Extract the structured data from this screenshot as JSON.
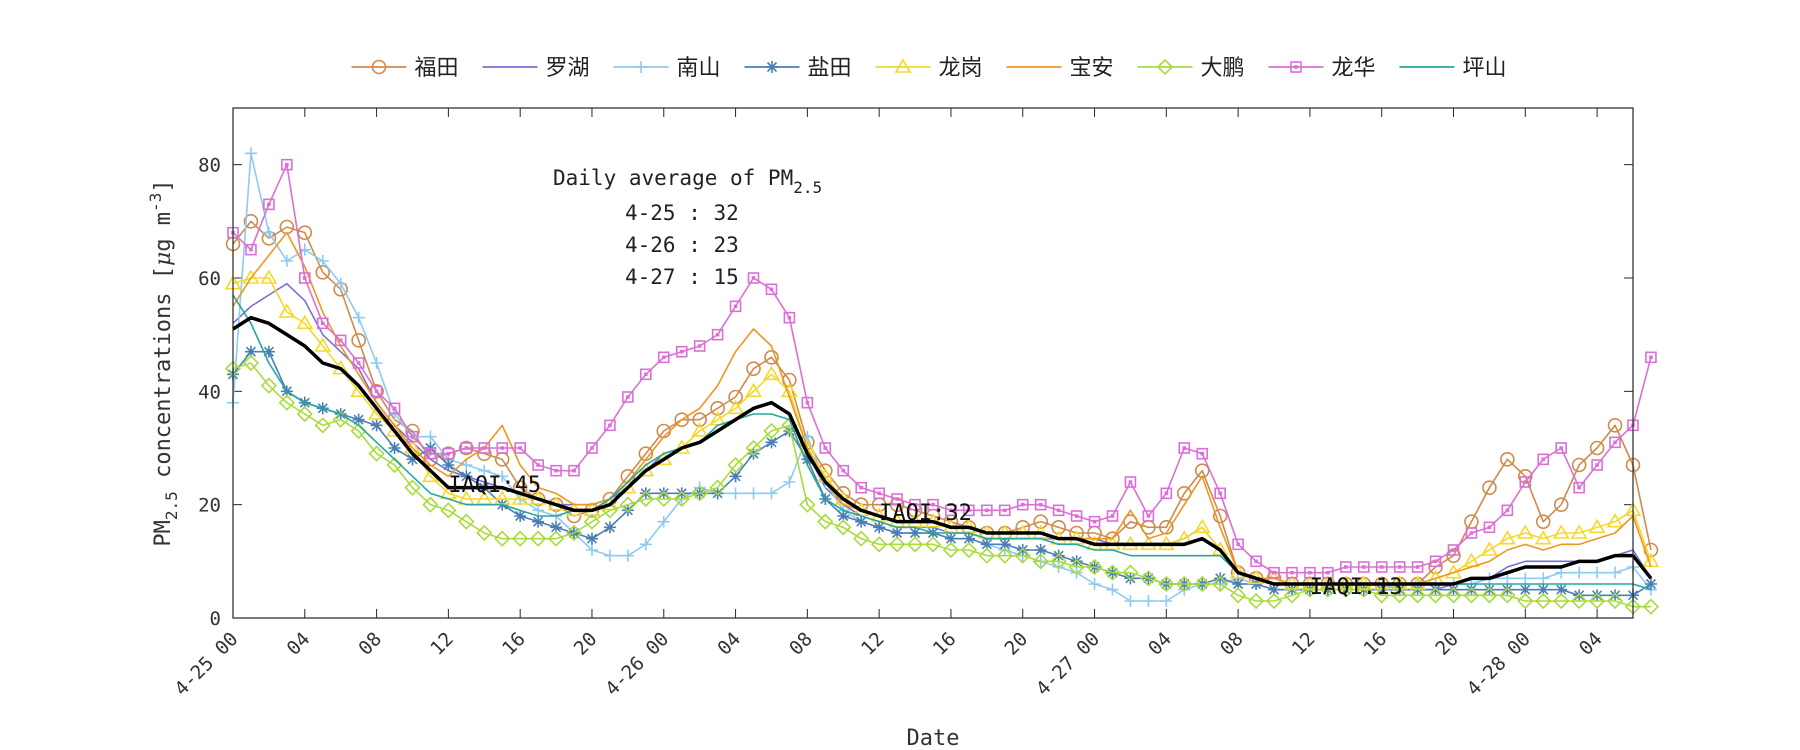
{
  "chart_data": {
    "type": "line",
    "xlabel": "Date",
    "ylabel_main": "PM",
    "ylabel_sub": "2.5",
    "ylabel_rest": " concentrations [",
    "ylabel_unit_mu": "μ",
    "ylabel_unit_rest": "g m",
    "ylabel_unit_sup": "-3",
    "ylabel_close": "]",
    "ylim": [
      0,
      90
    ],
    "yticks": [
      0,
      20,
      40,
      60,
      80
    ],
    "xlim": [
      0,
      78
    ],
    "xticks": [
      {
        "x": 0,
        "label": "4-25 00"
      },
      {
        "x": 4,
        "label": "04"
      },
      {
        "x": 8,
        "label": "08"
      },
      {
        "x": 12,
        "label": "12"
      },
      {
        "x": 16,
        "label": "16"
      },
      {
        "x": 20,
        "label": "20"
      },
      {
        "x": 24,
        "label": "4-26 00"
      },
      {
        "x": 28,
        "label": "04"
      },
      {
        "x": 32,
        "label": "08"
      },
      {
        "x": 36,
        "label": "12"
      },
      {
        "x": 40,
        "label": "16"
      },
      {
        "x": 44,
        "label": "20"
      },
      {
        "x": 48,
        "label": "4-27 00"
      },
      {
        "x": 52,
        "label": "04"
      },
      {
        "x": 56,
        "label": "08"
      },
      {
        "x": 60,
        "label": "12"
      },
      {
        "x": 64,
        "label": "16"
      },
      {
        "x": 68,
        "label": "20"
      },
      {
        "x": 72,
        "label": "4-28 00"
      },
      {
        "x": 76,
        "label": "04"
      }
    ],
    "annotation": {
      "title_main": "Daily average of PM",
      "title_sub": "2.5",
      "lines": [
        "4-25 : 32",
        "4-26 : 23",
        "4-27 : 15"
      ]
    },
    "iaqi_labels": [
      {
        "text": "IAQI:45",
        "x": 12,
        "y": 23.5
      },
      {
        "text": "IAQI:32",
        "x": 36,
        "y": 18.5
      },
      {
        "text": "IAQI:13",
        "x": 60,
        "y": 5.5
      }
    ],
    "legend_placement": "top",
    "series": [
      {
        "name": "福田",
        "color": "#D08A4A",
        "marker": "circle",
        "values": [
          66,
          70,
          67,
          69,
          68,
          61,
          58,
          49,
          40,
          35,
          33,
          28,
          29,
          30,
          29,
          28,
          23,
          21,
          20,
          18,
          19,
          21,
          25,
          29,
          33,
          35,
          35,
          37,
          39,
          44,
          46,
          42,
          31,
          26,
          22,
          20,
          20,
          20,
          19,
          18,
          17,
          16,
          15,
          15,
          16,
          17,
          16,
          15,
          15,
          14,
          17,
          16,
          16,
          22,
          26,
          18,
          8,
          7,
          7,
          6,
          6,
          6,
          6,
          6,
          6,
          6,
          6,
          9,
          11,
          17,
          23,
          28,
          25,
          17,
          20,
          27,
          30,
          34,
          27,
          12
        ]
      },
      {
        "name": "罗湖",
        "color": "#7A6FD6",
        "marker": "none",
        "values": [
          52,
          55,
          57,
          59,
          56,
          50,
          47,
          44,
          38,
          34,
          31,
          28,
          26,
          25,
          24,
          23,
          22,
          21,
          20,
          20,
          20,
          21,
          23,
          26,
          29,
          30,
          31,
          33,
          35,
          37,
          38,
          36,
          29,
          23,
          20,
          18,
          17,
          16,
          16,
          16,
          15,
          15,
          14,
          14,
          14,
          14,
          14,
          14,
          14,
          13,
          13,
          13,
          13,
          14,
          16,
          12,
          8,
          7,
          6,
          6,
          6,
          6,
          6,
          6,
          6,
          5,
          5,
          5,
          6,
          6,
          7,
          9,
          10,
          10,
          10,
          10,
          10,
          11,
          12,
          7
        ]
      },
      {
        "name": "南山",
        "color": "#8DCBF0",
        "marker": "plus",
        "values": [
          38,
          82,
          68,
          63,
          65,
          63,
          59,
          53,
          45,
          36,
          32,
          32,
          28,
          27,
          26,
          25,
          21,
          19,
          18,
          15,
          12,
          11,
          11,
          13,
          17,
          21,
          23,
          22,
          22,
          22,
          22,
          24,
          32,
          24,
          19,
          17,
          16,
          15,
          15,
          15,
          14,
          14,
          13,
          12,
          11,
          10,
          9,
          8,
          6,
          5,
          3,
          3,
          3,
          5,
          6,
          6,
          7,
          6,
          5,
          5,
          5,
          5,
          5,
          5,
          5,
          6,
          6,
          6,
          6,
          6,
          7,
          7,
          7,
          7,
          8,
          8,
          8,
          8,
          9,
          5
        ]
      },
      {
        "name": "盐田",
        "color": "#4A7FB5",
        "marker": "asterisk",
        "values": [
          43,
          47,
          47,
          40,
          38,
          37,
          36,
          35,
          34,
          30,
          28,
          30,
          27,
          25,
          23,
          20,
          18,
          17,
          16,
          15,
          14,
          16,
          19,
          22,
          22,
          22,
          22,
          22,
          25,
          29,
          31,
          33,
          28,
          21,
          18,
          17,
          16,
          15,
          15,
          15,
          14,
          14,
          13,
          13,
          12,
          12,
          11,
          10,
          9,
          8,
          7,
          7,
          6,
          6,
          6,
          7,
          6,
          6,
          5,
          5,
          5,
          5,
          5,
          5,
          5,
          5,
          5,
          5,
          5,
          5,
          5,
          5,
          5,
          5,
          5,
          4,
          4,
          4,
          4,
          6
        ]
      },
      {
        "name": "龙岗",
        "color": "#F5D82A",
        "marker": "triangle",
        "values": [
          59,
          60,
          60,
          54,
          52,
          48,
          44,
          40,
          36,
          33,
          30,
          25,
          22,
          21,
          21,
          21,
          21,
          21,
          20,
          19,
          19,
          20,
          23,
          26,
          28,
          30,
          33,
          35,
          37,
          40,
          43,
          40,
          30,
          25,
          21,
          19,
          18,
          17,
          17,
          17,
          16,
          16,
          15,
          15,
          15,
          15,
          14,
          14,
          13,
          13,
          13,
          13,
          13,
          14,
          16,
          12,
          8,
          7,
          7,
          6,
          6,
          6,
          6,
          6,
          6,
          6,
          6,
          7,
          8,
          10,
          12,
          14,
          15,
          14,
          15,
          15,
          16,
          17,
          19,
          10
        ]
      },
      {
        "name": "宝安",
        "color": "#F0961E",
        "marker": "none",
        "values": [
          55,
          60,
          64,
          68,
          62,
          54,
          48,
          43,
          38,
          34,
          30,
          27,
          25,
          28,
          30,
          34,
          27,
          23,
          22,
          20,
          20,
          21,
          24,
          28,
          32,
          35,
          37,
          41,
          47,
          51,
          48,
          39,
          30,
          24,
          20,
          19,
          18,
          17,
          17,
          17,
          16,
          16,
          15,
          15,
          15,
          15,
          14,
          14,
          14,
          14,
          19,
          14,
          15,
          20,
          25,
          16,
          8,
          7,
          7,
          6,
          6,
          6,
          6,
          6,
          6,
          6,
          6,
          7,
          8,
          9,
          10,
          12,
          13,
          12,
          13,
          13,
          14,
          15,
          18,
          9
        ]
      },
      {
        "name": "大鹏",
        "color": "#A8DC3C",
        "marker": "diamond",
        "values": [
          44,
          45,
          41,
          38,
          36,
          34,
          35,
          33,
          29,
          27,
          23,
          20,
          19,
          17,
          15,
          14,
          14,
          14,
          14,
          15,
          17,
          19,
          20,
          21,
          21,
          21,
          22,
          23,
          27,
          30,
          33,
          34,
          20,
          17,
          16,
          14,
          13,
          13,
          13,
          13,
          12,
          12,
          11,
          11,
          11,
          10,
          10,
          9,
          9,
          8,
          8,
          7,
          6,
          6,
          6,
          6,
          4,
          3,
          3,
          4,
          5,
          5,
          5,
          5,
          4,
          4,
          4,
          4,
          4,
          4,
          4,
          4,
          3,
          3,
          3,
          3,
          3,
          3,
          2,
          2
        ]
      },
      {
        "name": "龙华",
        "color": "#DA70D6",
        "marker": "square",
        "values": [
          68,
          65,
          73,
          80,
          60,
          52,
          49,
          45,
          40,
          37,
          32,
          29,
          29,
          30,
          30,
          30,
          30,
          27,
          26,
          26,
          30,
          34,
          39,
          43,
          46,
          47,
          48,
          50,
          55,
          60,
          58,
          53,
          38,
          30,
          26,
          23,
          22,
          21,
          20,
          20,
          19,
          19,
          19,
          19,
          20,
          20,
          19,
          18,
          17,
          18,
          24,
          18,
          22,
          30,
          29,
          22,
          13,
          10,
          8,
          8,
          8,
          8,
          9,
          9,
          9,
          9,
          9,
          10,
          12,
          15,
          16,
          19,
          24,
          28,
          30,
          23,
          27,
          31,
          34,
          46
        ]
      },
      {
        "name": "坪山",
        "color": "#25A89B",
        "marker": "none",
        "values": [
          57,
          52,
          45,
          40,
          38,
          37,
          36,
          34,
          31,
          28,
          25,
          22,
          21,
          20,
          20,
          20,
          19,
          18,
          18,
          19,
          19,
          21,
          24,
          27,
          29,
          30,
          31,
          34,
          35,
          36,
          36,
          35,
          27,
          21,
          19,
          18,
          17,
          16,
          16,
          15,
          15,
          15,
          14,
          14,
          14,
          14,
          13,
          13,
          12,
          12,
          11,
          11,
          11,
          11,
          11,
          11,
          8,
          7,
          6,
          6,
          6,
          6,
          6,
          6,
          6,
          6,
          6,
          6,
          6,
          6,
          6,
          6,
          6,
          6,
          6,
          6,
          6,
          6,
          6,
          5
        ]
      },
      {
        "name": "",
        "color": "#000000",
        "marker": "none",
        "is_average": true,
        "values": [
          51,
          53,
          52,
          50,
          48,
          45,
          44,
          41,
          37,
          33,
          29,
          26,
          23,
          23,
          23,
          23,
          22,
          21,
          20,
          19,
          19,
          20,
          23,
          26,
          28,
          30,
          31,
          33,
          35,
          37,
          38,
          36,
          29,
          24,
          21,
          19,
          18,
          17,
          17,
          17,
          16,
          16,
          15,
          15,
          15,
          15,
          14,
          14,
          13,
          13,
          13,
          13,
          13,
          13,
          14,
          12,
          8,
          7,
          6,
          6,
          6,
          6,
          6,
          6,
          6,
          6,
          6,
          6,
          6,
          7,
          7,
          8,
          9,
          9,
          9,
          10,
          10,
          11,
          11,
          7
        ]
      }
    ]
  }
}
